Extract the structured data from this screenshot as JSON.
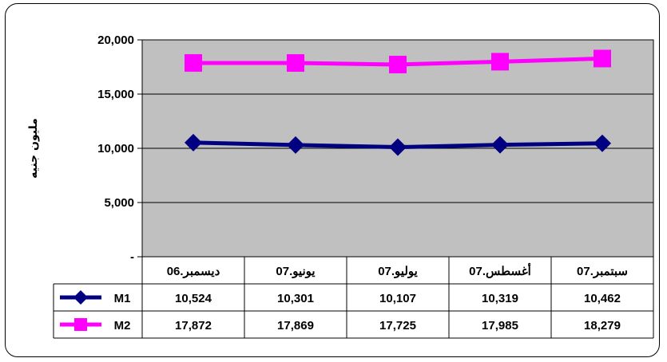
{
  "chart_data": {
    "type": "line",
    "ylabel": "مليون جنيه",
    "ylim": [
      0,
      20000
    ],
    "yticks": [
      "-",
      "5,000",
      "10,000",
      "15,000",
      "20,000"
    ],
    "ytick_values": [
      0,
      5000,
      10000,
      15000,
      20000
    ],
    "categories": [
      "ديسمبر.06",
      "يونيو.07",
      "يوليو.07",
      "أغسطس.07",
      "سبتمبر.07"
    ],
    "series": [
      {
        "name": "M1",
        "values": [
          10524,
          10301,
          10107,
          10319,
          10462
        ],
        "labels": [
          "10,524",
          "10,301",
          "10,107",
          "10,319",
          "10,462"
        ],
        "color": "#000080",
        "marker": "diamond"
      },
      {
        "name": "M2",
        "values": [
          17872,
          17869,
          17725,
          17985,
          18279
        ],
        "labels": [
          "17,872",
          "17,869",
          "17,725",
          "17,985",
          "18,279"
        ],
        "color": "#FF00FF",
        "marker": "square"
      }
    ],
    "grid": true,
    "plot_background": "#C0C0C0",
    "legend": "data-table"
  }
}
